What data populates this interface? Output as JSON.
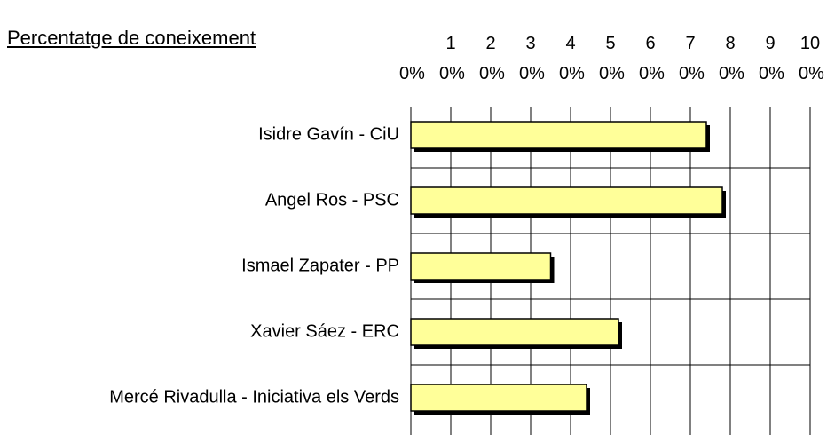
{
  "chart_data": {
    "type": "bar",
    "orientation": "horizontal",
    "title": "Percentatge de coneixement",
    "categories": [
      "Isidre Gavín - CiU",
      "Angel Ros - PSC",
      "Ismael Zapater - PP",
      "Xavier Sáez - ERC",
      "Mercé Rivadulla - Iniciativa els Verds"
    ],
    "values": [
      74,
      78,
      35,
      52,
      44
    ],
    "color": "#ffff99",
    "xlim": [
      0,
      100
    ],
    "xticks": [
      {
        "value": 0,
        "label": "0%"
      },
      {
        "value": 10,
        "label": "10%"
      },
      {
        "value": 20,
        "label": "20%"
      },
      {
        "value": 30,
        "label": "30%"
      },
      {
        "value": 40,
        "label": "40%"
      },
      {
        "value": 50,
        "label": "50%"
      },
      {
        "value": 60,
        "label": "60%"
      },
      {
        "value": 70,
        "label": "70%"
      },
      {
        "value": 80,
        "label": "80%"
      },
      {
        "value": 90,
        "label": "90%"
      },
      {
        "value": 100,
        "label": "100%"
      }
    ],
    "grid": true
  }
}
